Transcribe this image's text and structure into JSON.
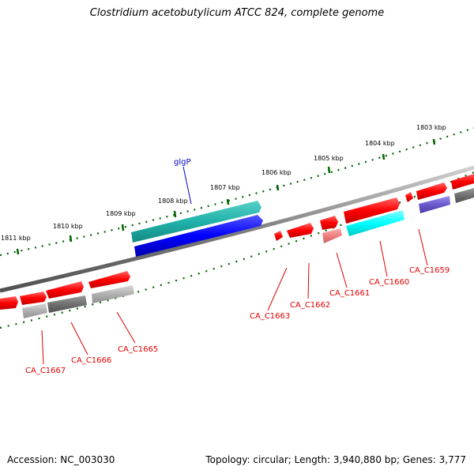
{
  "title": "Clostridium acetobutylicum ATCC 824, complete genome",
  "footer": {
    "accession": "Accession: NC_003030",
    "summary": "Topology: circular; Length: 3,940,880 bp; Genes: 3,777"
  },
  "ticks": [
    "1803 kbp",
    "1804 kbp",
    "1805 kbp",
    "1806 kbp",
    "1807 kbp",
    "1808 kbp",
    "1809 kbp",
    "1810 kbp",
    "1811 kbp"
  ],
  "genes": [
    {
      "label": "glgP",
      "color": "#0000c0"
    },
    {
      "label": "CA_C1659",
      "color": "#e00000"
    },
    {
      "label": "CA_C1660",
      "color": "#e00000"
    },
    {
      "label": "CA_C1661",
      "color": "#e00000"
    },
    {
      "label": "CA_C1662",
      "color": "#e00000"
    },
    {
      "label": "CA_C1663",
      "color": "#e00000"
    },
    {
      "label": "CA_C1665",
      "color": "#e00000"
    },
    {
      "label": "CA_C1666",
      "color": "#e00000"
    },
    {
      "label": "CA_C1667",
      "color": "#e00000"
    }
  ],
  "colors": {
    "backbone": "#808080",
    "tick_marks": "#006400",
    "gene_red": "#ff0000",
    "gene_blue": "#0000ff",
    "gene_cyan": "#00ffff",
    "gene_teal": "#20b2aa",
    "gene_gray": "#707070",
    "gene_lightgray": "#b0b0b0",
    "gene_lightred": "#f08080",
    "gene_purple": "#6a5acd"
  }
}
